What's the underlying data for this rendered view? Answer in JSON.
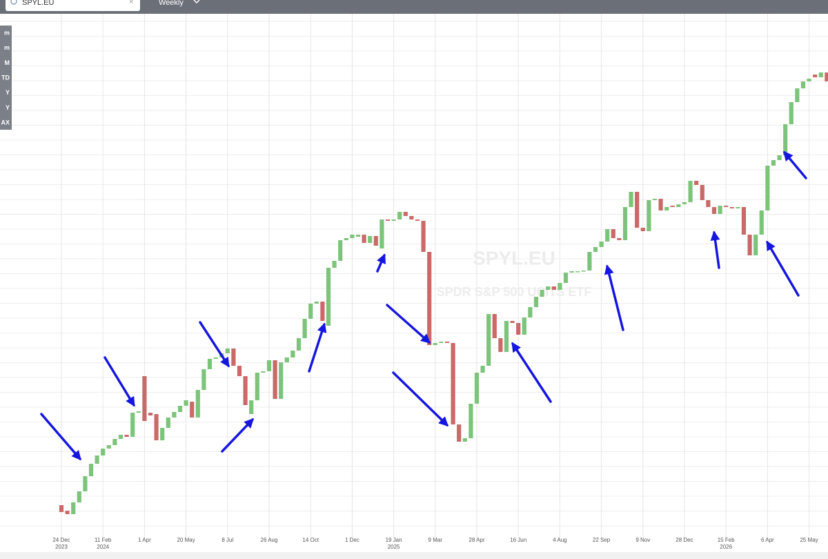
{
  "toolbar": {
    "search": "SPYL.EU",
    "interval": "Weekly"
  },
  "range_buttons": [
    "m",
    "m",
    "M",
    "TD",
    "Y",
    "Y",
    "AX"
  ],
  "chart_data": {
    "type": "candlestick",
    "watermark": {
      "symbol": "SPYL.EU",
      "name": "SPDR S&P 500 UCITS ETF"
    },
    "open": [
      68,
      60,
      55,
      72,
      88,
      110,
      128,
      140,
      150,
      155,
      164,
      170,
      167,
      202,
      255,
      202,
      200,
      162,
      180,
      195,
      203,
      212,
      218,
      195,
      235,
      265,
      280,
      282,
      288,
      295,
      270,
      255,
      200,
      220,
      260,
      262,
      278,
      222,
      275,
      282,
      292,
      310,
      338,
      360,
      363,
      328,
      412,
      422,
      452,
      455,
      457,
      460,
      448,
      458,
      440,
      482,
      480,
      482,
      493,
      487,
      482,
      480,
      435,
      300,
      303,
      305,
      303,
      185,
      160,
      165,
      215,
      260,
      270,
      345,
      310,
      290,
      335,
      332,
      315,
      340,
      355,
      370,
      380,
      385,
      380,
      390,
      405,
      407,
      407,
      408,
      435,
      442,
      450,
      468,
      455,
      452,
      500,
      522,
      470,
      465,
      510,
      512,
      495,
      502,
      500,
      504,
      507,
      538,
      532,
      510,
      500,
      490,
      502,
      500,
      498,
      500,
      460,
      430,
      460,
      495,
      560,
      568,
      575,
      620,
      652,
      672,
      682,
      692,
      688,
      695
    ],
    "close": [
      58,
      55,
      72,
      88,
      110,
      128,
      140,
      150,
      155,
      164,
      170,
      167,
      202,
      204,
      190,
      198,
      162,
      180,
      195,
      203,
      212,
      220,
      195,
      235,
      265,
      280,
      282,
      288,
      295,
      270,
      255,
      213,
      220,
      260,
      262,
      278,
      222,
      275,
      282,
      292,
      310,
      338,
      360,
      363,
      335,
      412,
      422,
      452,
      455,
      460,
      460,
      448,
      458,
      444,
      482,
      480,
      482,
      493,
      487,
      482,
      480,
      435,
      300,
      303,
      305,
      303,
      185,
      160,
      165,
      215,
      260,
      270,
      345,
      310,
      290,
      335,
      332,
      315,
      340,
      355,
      370,
      380,
      385,
      380,
      390,
      405,
      407,
      407,
      408,
      435,
      442,
      450,
      468,
      455,
      452,
      500,
      522,
      470,
      465,
      510,
      512,
      495,
      500,
      500,
      504,
      507,
      538,
      532,
      510,
      500,
      490,
      502,
      500,
      498,
      500,
      460,
      430,
      460,
      495,
      560,
      568,
      575,
      620,
      652,
      672,
      682,
      686,
      688,
      695,
      682
    ],
    "up_color": "#7cc47a",
    "down_color": "#c96a68",
    "xlim": [
      -10.35,
      129.19
    ],
    "ylim": [
      20,
      780
    ],
    "grid": true,
    "xticks": [
      {
        "value": 0,
        "label": "24 Dec",
        "year": "2023"
      },
      {
        "value": 7,
        "label": "11 Feb",
        "year": "2024"
      },
      {
        "value": 14,
        "label": "1 Apr"
      },
      {
        "value": 21,
        "label": "20 May"
      },
      {
        "value": 28,
        "label": "8 Jul"
      },
      {
        "value": 35,
        "label": "26 Aug"
      },
      {
        "value": 42,
        "label": "14 Oct"
      },
      {
        "value": 49,
        "label": "1 Dec"
      },
      {
        "value": 56,
        "label": "19 Jan",
        "year": "2025"
      },
      {
        "value": 63,
        "label": "9 Mar"
      },
      {
        "value": 70,
        "label": "28 Apr"
      },
      {
        "value": 77,
        "label": "16 Jun"
      },
      {
        "value": 84,
        "label": "4 Aug"
      },
      {
        "value": 91,
        "label": "22 Sep"
      },
      {
        "value": 98,
        "label": "9 Nov"
      },
      {
        "value": 105,
        "label": "28 Dec"
      },
      {
        "value": 112,
        "label": "15 Feb",
        "year": "2026"
      },
      {
        "value": 119,
        "label": "6 Apr"
      },
      {
        "value": 126,
        "label": "25 May"
      }
    ]
  }
}
